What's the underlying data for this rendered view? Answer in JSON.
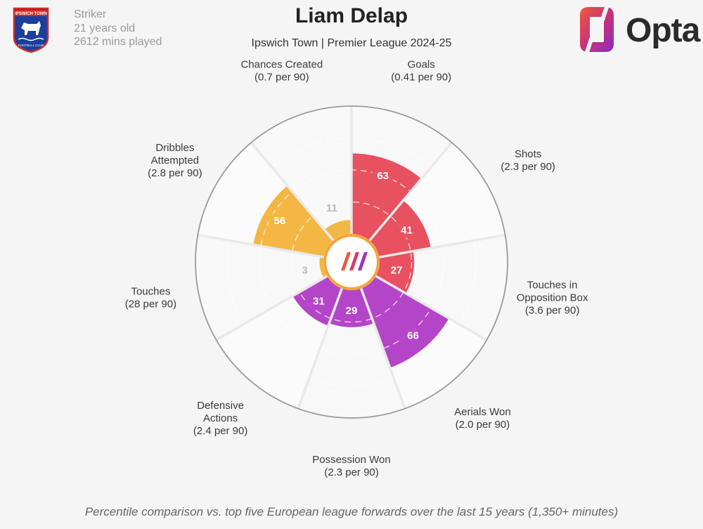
{
  "header": {
    "player_name": "Liam Delap",
    "subtitle": "Ipswich Town | Premier League 2024-25",
    "position": "Striker",
    "age": "21 years old",
    "minutes": "2612 mins played",
    "brand": "Opta",
    "crest_text_top": "IPSWICH TOWN",
    "crest_text_bottom": "FOOTBALL CLUB"
  },
  "footnote": "Percentile comparison vs. top five European league forwards over the last 15 years (1,350+ minutes)",
  "colors": {
    "attacking": "#e8515f",
    "possession": "#b545c8",
    "creative": "#f4b744",
    "inner_circle": "#f6a33a"
  },
  "chart_data": {
    "type": "polar_bar",
    "title": "Liam Delap",
    "subtitle": "Ipswich Town | Premier League 2024-25",
    "scale": [
      0,
      100
    ],
    "metrics": [
      {
        "name": "Goals",
        "line1": "Goals",
        "line2": "",
        "rate": "(0.41 per 90)",
        "percentile": 63,
        "group": "attacking"
      },
      {
        "name": "Shots",
        "line1": "Shots",
        "line2": "",
        "rate": "(2.3 per 90)",
        "percentile": 41,
        "group": "attacking"
      },
      {
        "name": "Touches in Opposition Box",
        "line1": "Touches in",
        "line2": "Opposition Box",
        "rate": "(3.6 per 90)",
        "percentile": 27,
        "group": "attacking"
      },
      {
        "name": "Aerials Won",
        "line1": "Aerials Won",
        "line2": "",
        "rate": "(2.0 per 90)",
        "percentile": 66,
        "group": "possession"
      },
      {
        "name": "Possession Won",
        "line1": "Possession Won",
        "line2": "",
        "rate": "(2.3 per 90)",
        "percentile": 29,
        "group": "possession"
      },
      {
        "name": "Defensive Actions",
        "line1": "Defensive",
        "line2": "Actions",
        "rate": "(2.4 per 90)",
        "percentile": 31,
        "group": "possession"
      },
      {
        "name": "Touches",
        "line1": "Touches",
        "line2": "",
        "rate": "(28 per 90)",
        "percentile": 3,
        "group": "creative"
      },
      {
        "name": "Dribbles Attempted",
        "line1": "Dribbles",
        "line2": "Attempted",
        "rate": "(2.8 per 90)",
        "percentile": 56,
        "group": "creative"
      },
      {
        "name": "Chances Created",
        "line1": "Chances Created",
        "line2": "",
        "rate": "(0.7 per 90)",
        "percentile": 11,
        "group": "creative"
      }
    ]
  }
}
